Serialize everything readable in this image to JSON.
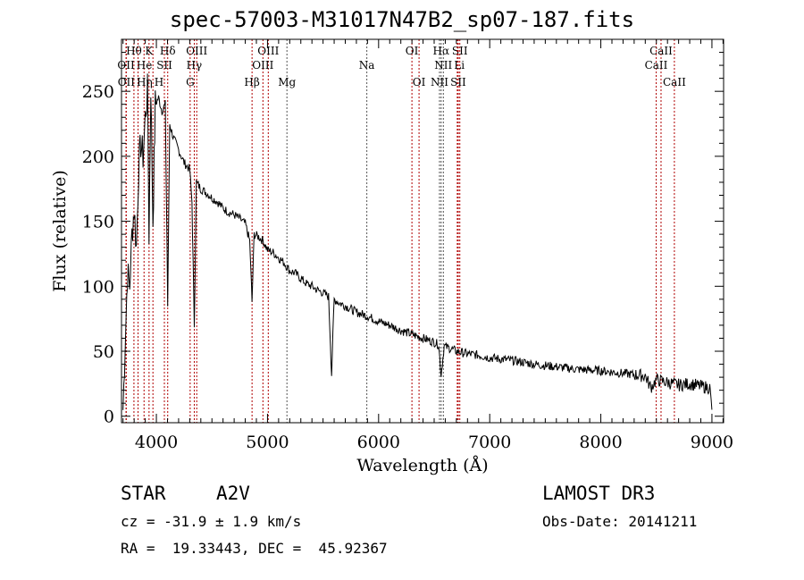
{
  "chart_data": {
    "type": "line",
    "title": "spec-57003-M31017N47B2_sp07-187.fits",
    "xlabel": "Wavelength (Å)",
    "ylabel": "Flux (relative)",
    "xlim": [
      3686,
      9105
    ],
    "ylim": [
      -5,
      290
    ],
    "xticks": [
      4000,
      5000,
      6000,
      7000,
      8000,
      9000
    ],
    "yticks": [
      0,
      50,
      100,
      150,
      200,
      250
    ],
    "grid": false,
    "series": [
      {
        "name": "spectrum",
        "x": [
          3700,
          3720,
          3740,
          3760,
          3780,
          3800,
          3820,
          3840,
          3860,
          3880,
          3900,
          3920,
          3934,
          3950,
          3969,
          3990,
          4020,
          4050,
          4080,
          4102,
          4120,
          4150,
          4200,
          4250,
          4300,
          4320,
          4341,
          4360,
          4400,
          4450,
          4500,
          4550,
          4600,
          4650,
          4700,
          4750,
          4800,
          4840,
          4861,
          4880,
          4920,
          4960,
          5000,
          5050,
          5100,
          5150,
          5200,
          5250,
          5300,
          5350,
          5400,
          5450,
          5500,
          5550,
          5577,
          5600,
          5650,
          5700,
          5800,
          5900,
          6000,
          6100,
          6200,
          6300,
          6400,
          6500,
          6540,
          6563,
          6590,
          6650,
          6700,
          6800,
          6900,
          7000,
          7200,
          7400,
          7600,
          7800,
          8000,
          8200,
          8400,
          8450,
          8500,
          8550,
          8600,
          8700,
          8800,
          8900,
          8980,
          9000
        ],
        "y": [
          5,
          60,
          110,
          100,
          140,
          160,
          130,
          190,
          210,
          200,
          230,
          250,
          140,
          255,
          150,
          240,
          245,
          235,
          240,
          85,
          225,
          215,
          205,
          195,
          190,
          165,
          70,
          180,
          175,
          172,
          168,
          165,
          160,
          157,
          155,
          152,
          148,
          135,
          88,
          140,
          138,
          135,
          128,
          126,
          122,
          118,
          112,
          110,
          106,
          102,
          100,
          97,
          95,
          92,
          32,
          90,
          87,
          85,
          80,
          77,
          73,
          70,
          66,
          63,
          60,
          57,
          55,
          32,
          54,
          52,
          50,
          48,
          47,
          45,
          43,
          40,
          38,
          36,
          35,
          33,
          31,
          22,
          28,
          27,
          26,
          24,
          25,
          23,
          22,
          5
        ]
      }
    ],
    "lines": [
      {
        "label": "Hθ",
        "wl": 3798,
        "row": 0,
        "color": "#b00000"
      },
      {
        "label": "K",
        "wl": 3934,
        "row": 0,
        "color": "#b00000"
      },
      {
        "label": "Hδ",
        "wl": 4102,
        "row": 0,
        "color": "#b00000"
      },
      {
        "label": "OIII",
        "wl": 4363,
        "row": 0,
        "color": "#b00000"
      },
      {
        "label": "OIII",
        "wl": 5007,
        "row": 0,
        "color": "#b00000"
      },
      {
        "label": "OI",
        "wl": 6300,
        "row": 0,
        "color": "#b00000"
      },
      {
        "label": "Hα",
        "wl": 6563,
        "row": 0,
        "color": "#555555"
      },
      {
        "label": "SII",
        "wl": 6731,
        "row": 0,
        "color": "#b00000"
      },
      {
        "label": "CaII",
        "wl": 8542,
        "row": 0,
        "color": "#b00000"
      },
      {
        "label": "OII",
        "wl": 3727,
        "row": 1,
        "color": "#b00000"
      },
      {
        "label": "He",
        "wl": 3889,
        "row": 1,
        "color": "#b00000"
      },
      {
        "label": "SII",
        "wl": 4072,
        "row": 1,
        "color": "#b00000"
      },
      {
        "label": "Hγ",
        "wl": 4341,
        "row": 1,
        "color": "#b00000"
      },
      {
        "label": "OIII",
        "wl": 4959,
        "row": 1,
        "color": "#b00000"
      },
      {
        "label": "Na",
        "wl": 5894,
        "row": 1,
        "color": "#555555"
      },
      {
        "label": "NII",
        "wl": 6583,
        "row": 1,
        "color": "#555555"
      },
      {
        "label": "Li",
        "wl": 6708,
        "row": 1,
        "color": "#b00000"
      },
      {
        "label": "CaII",
        "wl": 8498,
        "row": 1,
        "color": "#b00000"
      },
      {
        "label": "OII",
        "wl": 3729,
        "row": 2,
        "color": "#b00000"
      },
      {
        "label": "Hη",
        "wl": 3835,
        "row": 2,
        "color": "#b00000"
      },
      {
        "label": "H",
        "wl": 3969,
        "row": 2,
        "color": "#b00000"
      },
      {
        "label": "G",
        "wl": 4304,
        "row": 2,
        "color": "#b00000"
      },
      {
        "label": "Hβ",
        "wl": 4861,
        "row": 2,
        "color": "#b00000"
      },
      {
        "label": "Mg",
        "wl": 5175,
        "row": 2,
        "color": "#555555"
      },
      {
        "label": "OI",
        "wl": 6364,
        "row": 2,
        "color": "#b00000"
      },
      {
        "label": "NII",
        "wl": 6548,
        "row": 2,
        "color": "#555555"
      },
      {
        "label": "SII",
        "wl": 6717,
        "row": 2,
        "color": "#b00000"
      },
      {
        "label": "CaII",
        "wl": 8662,
        "row": 2,
        "color": "#b00000"
      }
    ]
  },
  "info": {
    "class": "STAR",
    "subclass": "A2V",
    "survey": "LAMOST DR3",
    "cz": "cz = -31.9 ± 1.9 km/s",
    "obsdate": "Obs-Date: 20141211",
    "radec": "RA =  19.33443, DEC =  45.92367"
  }
}
